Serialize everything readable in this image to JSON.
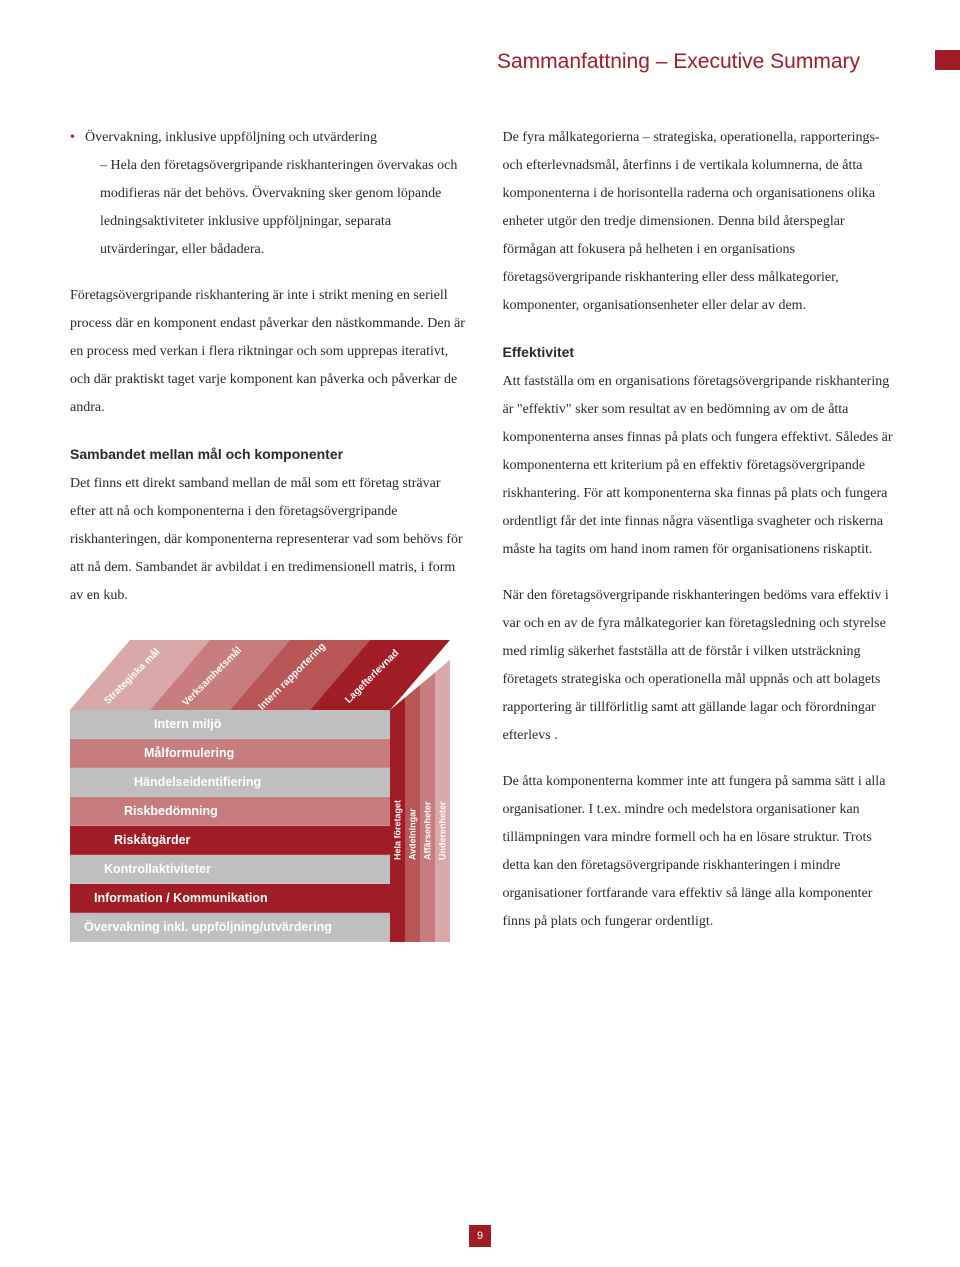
{
  "page": {
    "title": "Sammanfattning – Executive Summary",
    "number": "9"
  },
  "colors": {
    "accent": "#a01d26",
    "text": "#2a2a2a"
  },
  "left_column": {
    "bullet_main": "Övervakning, inklusive uppföljning och utvärdering",
    "bullet_sub": "– Hela den företagsövergripande riskhanteringen övervakas och modifieras när det behövs. Övervakning sker genom löpande ledningsaktiviteter inklusive uppföljningar, separata utvärderingar, eller bådadera.",
    "para1": "Företagsövergripande riskhantering är inte i strikt mening en seriell process där en komponent endast påverkar den nästkommande. Den är en process med verkan i flera riktningar och som upprepas iterativt, och där praktiskt taget varje komponent kan påverka och påverkar de andra.",
    "sub1_heading": "Sambandet mellan mål och komponenter",
    "sub1_body": "Det finns ett direkt samband mellan de mål som ett företag strävar efter att nå och komponenterna i den företagsövergripande riskhanteringen, där komponenterna representerar vad som behövs för att nå dem. Sambandet är avbildat i en tredimensionell matris, i form av en kub."
  },
  "right_column": {
    "para1": "De fyra målkategorierna – strategiska, operationella, rapporterings- och efterlevnadsmål, återfinns i de vertikala kolumnerna, de åtta komponenterna i de horisontella raderna och organisationens olika enheter utgör den tredje dimensionen. Denna bild återspeglar förmågan att fokusera på helheten i en organisations företagsövergripande riskhantering eller dess målkategorier, komponenter, organisationsenheter eller delar av dem.",
    "sub1_heading": "Effektivitet",
    "sub1_body": "Att fastställa om en organisations företagsövergripande riskhantering är \"effektiv\" sker som resultat av en bedömning av om de åtta komponenterna anses finnas på plats och fungera effektivt. Således är komponenterna ett kriterium på en effektiv företagsövergripande riskhantering. För att komponenterna ska finnas på plats och fungera ordentligt får det inte finnas några väsentliga svagheter och riskerna måste ha tagits om hand inom ramen för organisationens riskaptit.",
    "para2": "När den företagsövergripande riskhanteringen bedöms vara effektiv i var och en av de fyra målkategorier kan företagsledning och styrelse med rimlig säkerhet fastställa att de förstår i vilken utsträckning företagets strategiska och operationella mål uppnås och att bolagets rapportering är tillförlitlig samt att gällande lagar och förordningar efterlevs .",
    "para3": "De åtta komponenterna kommer inte att fungera på samma sätt i alla organisationer. I t.ex. mindre och medelstora organisationer kan tillämpningen vara mindre formell och ha en lösare struktur. Trots detta kan den företagsövergripande riskhanteringen i mindre organisationer fortfarande vara effektiv så länge alla komponenter finns på plats och fungerar ordentligt."
  },
  "cube": {
    "top_labels": [
      "Strategiska mål",
      "Verksamhetsmål",
      "Intern rapportering",
      "Lagefterlevnad"
    ],
    "top_colors": [
      "#d9a8a8",
      "#c77d7d",
      "#b85555",
      "#a01d26"
    ],
    "side_labels": [
      "Hela företaget",
      "Avdelningar",
      "Affärsenheter",
      "Underenheter"
    ],
    "side_colors": [
      "#a01d26",
      "#b85555",
      "#c77d7d",
      "#d9a8a8"
    ],
    "front_rows": [
      {
        "label": "Intern miljö",
        "color": "#bfbfbf"
      },
      {
        "label": "Målformulering",
        "color": "#c77d7d"
      },
      {
        "label": "Händelseidentifiering",
        "color": "#bfbfbf"
      },
      {
        "label": "Riskbedömning",
        "color": "#c77d7d"
      },
      {
        "label": "Riskåtgärder",
        "color": "#a01d26"
      },
      {
        "label": "Kontrollaktiviteter",
        "color": "#bfbfbf"
      },
      {
        "label": "Information / Kommunikation",
        "color": "#a01d26"
      },
      {
        "label": "Övervakning inkl. uppföljning/utvärdering",
        "color": "#bfbfbf"
      }
    ]
  }
}
